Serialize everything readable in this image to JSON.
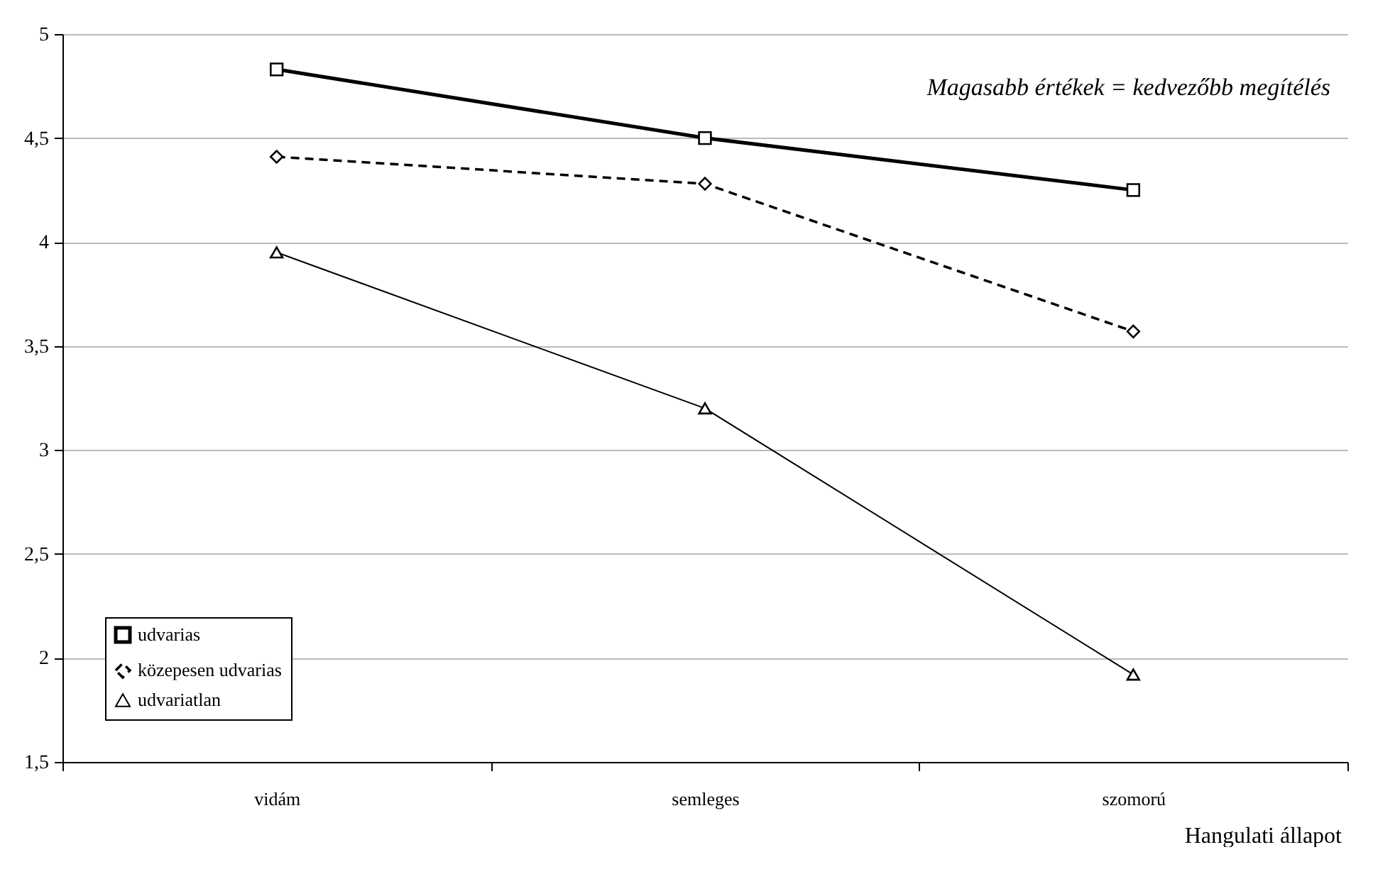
{
  "chart_data": {
    "type": "line",
    "xlabel": "Hangulati állapot",
    "annotations": [
      "Magasabb értékek = kedvezőbb megítélés"
    ],
    "categories": [
      "vidám",
      "semleges",
      "szomorú"
    ],
    "series": [
      {
        "name": "udvarias",
        "color": "#000000",
        "values": [
          4.83,
          4.5,
          4.25
        ],
        "marker": "square",
        "line_style": "solid"
      },
      {
        "name": "közepesen udvarias",
        "color": "#000000",
        "values": [
          4.41,
          4.28,
          3.57
        ],
        "marker": "diamond",
        "line_style": "dashed"
      },
      {
        "name": "udvariatlan",
        "color": "#000000",
        "values": [
          3.95,
          3.2,
          1.92
        ],
        "marker": "triangle",
        "line_style": "solid"
      }
    ],
    "ylim": [
      1.5,
      5
    ],
    "yticks": [
      {
        "value": 1.5,
        "label": "1,5"
      },
      2,
      {
        "value": 2.5,
        "label": "2,5"
      },
      3,
      {
        "value": 3.5,
        "label": "3,5"
      },
      4,
      {
        "value": 4.5,
        "label": "4,5"
      },
      5
    ],
    "grid": "y",
    "legend": "bottom left"
  }
}
